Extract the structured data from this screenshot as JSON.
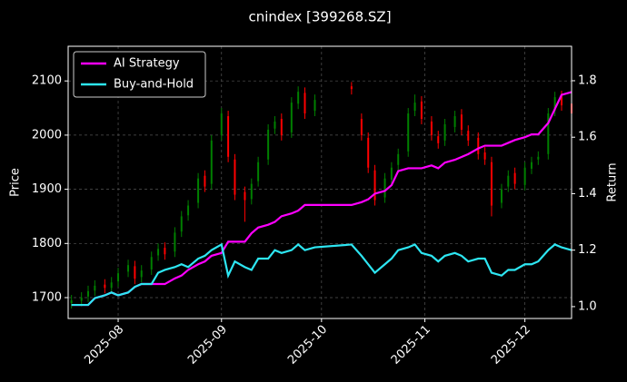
{
  "chart_data": {
    "type": "candlestick",
    "title": "cnindex [399268.SZ]",
    "ylabel": "Price",
    "y2label": "Return",
    "x": [
      "2025-07-18",
      "2025-07-21",
      "2025-07-23",
      "2025-07-25",
      "2025-07-28",
      "2025-07-30",
      "2025-08-01",
      "2025-08-04",
      "2025-08-06",
      "2025-08-08",
      "2025-08-11",
      "2025-08-13",
      "2025-08-15",
      "2025-08-18",
      "2025-08-20",
      "2025-08-22",
      "2025-08-25",
      "2025-08-27",
      "2025-08-29",
      "2025-09-01",
      "2025-09-03",
      "2025-09-05",
      "2025-09-08",
      "2025-09-10",
      "2025-09-12",
      "2025-09-15",
      "2025-09-17",
      "2025-09-19",
      "2025-09-22",
      "2025-09-24",
      "2025-09-26",
      "2025-09-29",
      "2025-10-10",
      "2025-10-13",
      "2025-10-15",
      "2025-10-17",
      "2025-10-20",
      "2025-10-22",
      "2025-10-24",
      "2025-10-27",
      "2025-10-29",
      "2025-10-31",
      "2025-11-03",
      "2025-11-05",
      "2025-11-07",
      "2025-11-10",
      "2025-11-12",
      "2025-11-14",
      "2025-11-17",
      "2025-11-19",
      "2025-11-21",
      "2025-11-24",
      "2025-11-26",
      "2025-11-28",
      "2025-12-01",
      "2025-12-03",
      "2025-12-05",
      "2025-12-08",
      "2025-12-10",
      "2025-12-12",
      "2025-12-15"
    ],
    "ohlc": {
      "up_color": "#008000",
      "down_color": "#ff0000",
      "open": [
        1690,
        1694,
        1702,
        1713,
        1724,
        1718,
        1730,
        1748,
        1758,
        1738,
        1752,
        1778,
        1792,
        1785,
        1822,
        1852,
        1875,
        1925,
        1910,
        2000,
        2035,
        1955,
        1895,
        1882,
        1915,
        1955,
        2012,
        2030,
        2005,
        2058,
        2078,
        2045,
        2090,
        2030,
        1995,
        1935,
        1885,
        1918,
        1945,
        1970,
        2045,
        2062,
        2025,
        1998,
        1990,
        2015,
        2038,
        2008,
        1995,
        1968,
        1950,
        1875,
        1905,
        1930,
        1908,
        1938,
        1955,
        1965,
        2045,
        2072,
        2058
      ],
      "high": [
        1705,
        1710,
        1722,
        1732,
        1734,
        1738,
        1755,
        1770,
        1768,
        1760,
        1785,
        1800,
        1802,
        1830,
        1860,
        1880,
        1930,
        1935,
        2000,
        2050,
        2045,
        1965,
        1905,
        1920,
        1960,
        2020,
        2035,
        2040,
        2070,
        2090,
        2088,
        2075,
        2098,
        2040,
        2005,
        1945,
        1930,
        1950,
        1975,
        2050,
        2075,
        2072,
        2035,
        2008,
        2030,
        2045,
        2048,
        2018,
        2005,
        1978,
        1960,
        1910,
        1935,
        1940,
        1950,
        1960,
        1970,
        2050,
        2080,
        2082,
        2068
      ],
      "low": [
        1680,
        1684,
        1692,
        1703,
        1708,
        1708,
        1720,
        1738,
        1725,
        1728,
        1742,
        1768,
        1770,
        1775,
        1812,
        1842,
        1865,
        1895,
        1900,
        1990,
        1950,
        1880,
        1840,
        1872,
        1905,
        1945,
        2002,
        1990,
        1995,
        2048,
        2030,
        2035,
        2075,
        1990,
        1930,
        1870,
        1875,
        1908,
        1935,
        1960,
        2035,
        2020,
        1990,
        1975,
        1980,
        2005,
        2000,
        1980,
        1955,
        1945,
        1850,
        1865,
        1895,
        1900,
        1898,
        1928,
        1945,
        1955,
        2035,
        2045,
        2030
      ],
      "close": [
        1695,
        1700,
        1712,
        1722,
        1718,
        1728,
        1745,
        1760,
        1735,
        1750,
        1775,
        1790,
        1780,
        1820,
        1850,
        1870,
        1920,
        1905,
        1990,
        2040,
        1960,
        1890,
        1880,
        1910,
        1950,
        2010,
        2025,
        2000,
        2060,
        2080,
        2040,
        2065,
        2085,
        2000,
        1940,
        1880,
        1920,
        1940,
        1965,
        2040,
        2060,
        2030,
        2000,
        1985,
        2020,
        2035,
        2010,
        1990,
        1965,
        1955,
        1870,
        1900,
        1925,
        1910,
        1940,
        1950,
        1960,
        2040,
        2070,
        2055,
        2040
      ]
    },
    "series": [
      {
        "name": "AI Strategy",
        "type": "line",
        "axis": "y2",
        "color": "#ff00ff",
        "values": [
          1.006,
          1.006,
          1.006,
          1.03,
          1.04,
          1.05,
          1.04,
          1.05,
          1.07,
          1.08,
          1.08,
          1.08,
          1.08,
          1.1,
          1.11,
          1.13,
          1.15,
          1.16,
          1.18,
          1.19,
          1.23,
          1.23,
          1.23,
          1.26,
          1.28,
          1.29,
          1.3,
          1.32,
          1.33,
          1.34,
          1.36,
          1.36,
          1.36,
          1.37,
          1.38,
          1.4,
          1.41,
          1.43,
          1.48,
          1.49,
          1.49,
          1.49,
          1.5,
          1.49,
          1.51,
          1.52,
          1.53,
          1.54,
          1.56,
          1.57,
          1.57,
          1.57,
          1.58,
          1.59,
          1.6,
          1.61,
          1.61,
          1.65,
          1.7,
          1.75,
          1.76
        ]
      },
      {
        "name": "Buy-and-Hold",
        "type": "line",
        "axis": "y2",
        "color": "#2de6f2",
        "values": [
          1.006,
          1.006,
          1.006,
          1.03,
          1.04,
          1.05,
          1.04,
          1.05,
          1.07,
          1.08,
          1.08,
          1.12,
          1.13,
          1.14,
          1.15,
          1.14,
          1.17,
          1.18,
          1.2,
          1.22,
          1.11,
          1.16,
          1.14,
          1.13,
          1.17,
          1.17,
          1.2,
          1.19,
          1.2,
          1.22,
          1.2,
          1.21,
          1.22,
          1.18,
          1.15,
          1.12,
          1.15,
          1.17,
          1.2,
          1.21,
          1.22,
          1.19,
          1.18,
          1.16,
          1.18,
          1.19,
          1.18,
          1.16,
          1.17,
          1.17,
          1.12,
          1.11,
          1.13,
          1.13,
          1.15,
          1.15,
          1.16,
          1.2,
          1.22,
          1.21,
          1.2
        ]
      }
    ],
    "xlim": [
      "2025-07-17",
      "2025-12-15"
    ],
    "xticks": [
      {
        "value": "2025-08-01",
        "label": "2025-08"
      },
      {
        "value": "2025-09-01",
        "label": "2025-09"
      },
      {
        "value": "2025-10-01",
        "label": "2025-10"
      },
      {
        "value": "2025-11-01",
        "label": "2025-11"
      },
      {
        "value": "2025-12-01",
        "label": "2025-12"
      }
    ],
    "ylim": [
      1661.5,
      2164
    ],
    "yticks": [
      1700,
      1800,
      1900,
      2000,
      2100
    ],
    "y2lim": [
      0.958,
      1.922
    ],
    "y2ticks": [
      {
        "value": 1,
        "label": "1.0"
      },
      1.2,
      1.4,
      1.6,
      1.8
    ],
    "grid": true,
    "legend": "upper left"
  }
}
